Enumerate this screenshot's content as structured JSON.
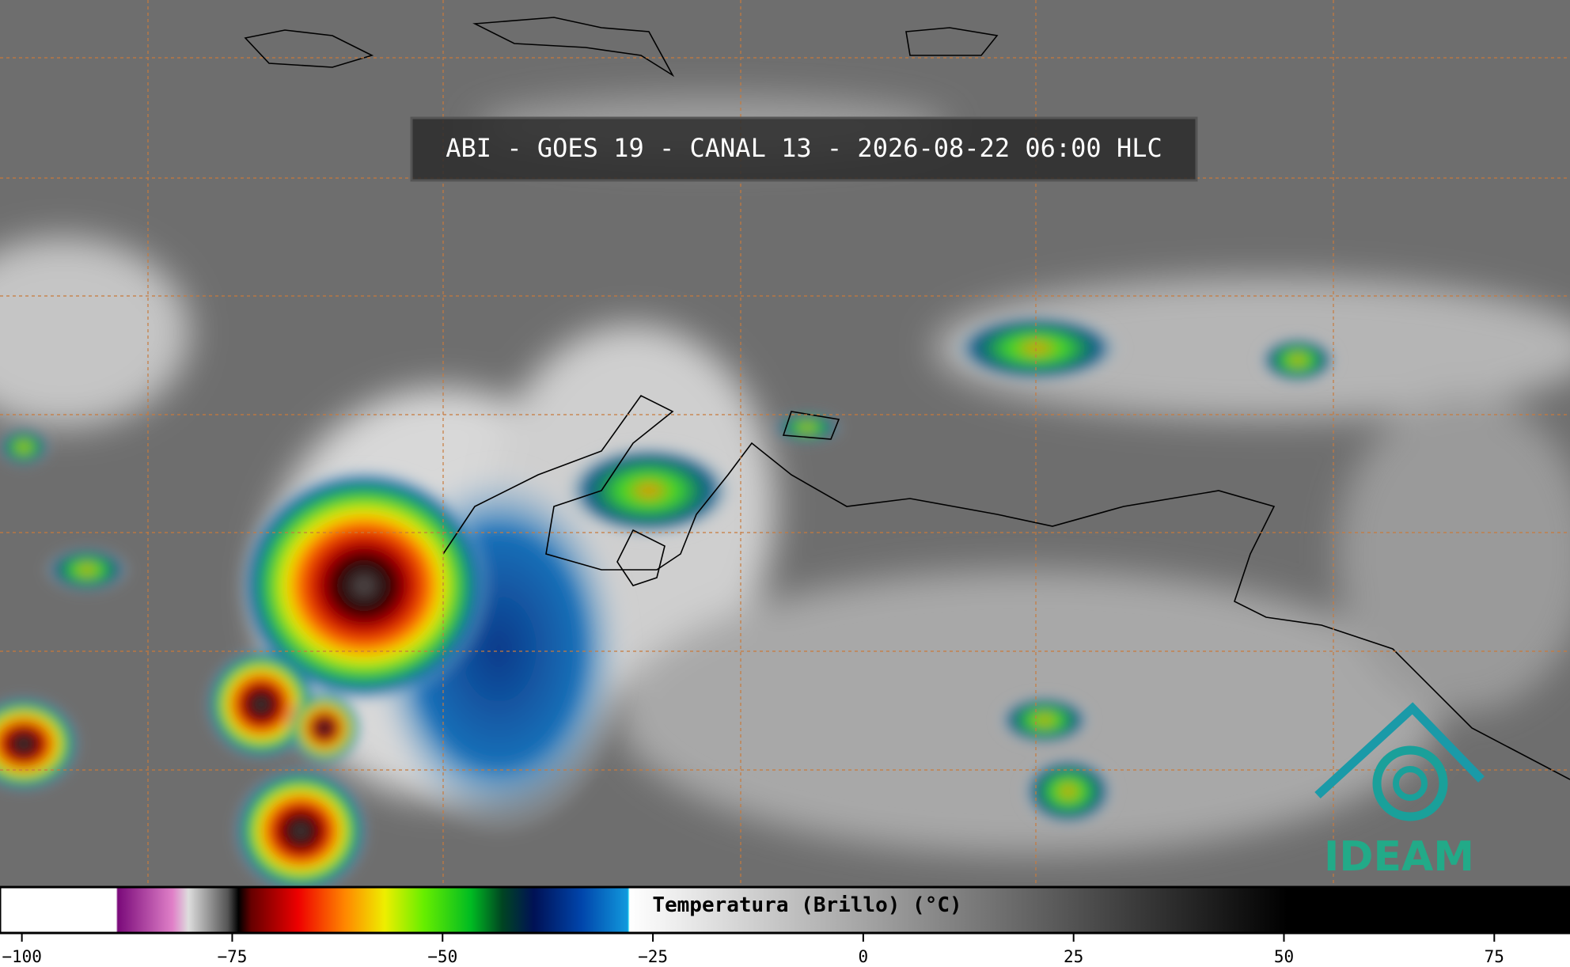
{
  "header": {
    "title": "ABI - GOES 19 - CANAL 13 - 2026-08-22 06:00 HLC"
  },
  "colorbar": {
    "label": "Temperatura (Brillo) (°C)",
    "range": [
      -102.6,
      84
    ],
    "ticks": [
      {
        "value": -100,
        "label": "−100"
      },
      {
        "value": -75,
        "label": "−75"
      },
      {
        "value": -50,
        "label": "−50"
      },
      {
        "value": -25,
        "label": "−25"
      },
      0,
      25,
      50,
      75
    ]
  },
  "logo": {
    "text": "IDEAM"
  }
}
